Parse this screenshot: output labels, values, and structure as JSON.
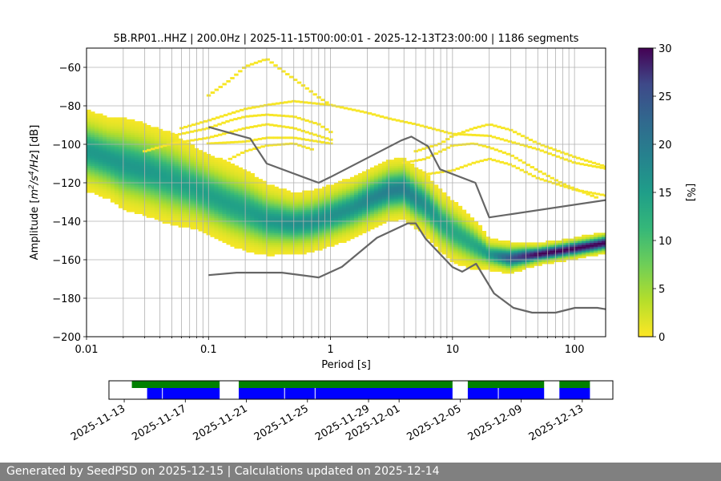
{
  "chart_data": {
    "type": "heatmap",
    "title": "5B.RP01..HHZ | 200.0Hz | 2025-11-15T00:00:01 - 2025-12-13T23:00:00 | 1186 segments",
    "xlabel": "Period [s]",
    "ylabel_parts": [
      "Amplitude [",
      "m",
      "2",
      "/s",
      "4",
      "/Hz",
      "] [dB]"
    ],
    "xscale": "log",
    "xlim": [
      0.01,
      180
    ],
    "ylim": [
      -200,
      -50
    ],
    "grid": true,
    "xticks": [
      {
        "value": 0.01,
        "label": "0.01"
      },
      {
        "value": 0.1,
        "label": "0.1"
      },
      {
        "value": 1,
        "label": "1"
      },
      {
        "value": 10,
        "label": "10"
      },
      {
        "value": 100,
        "label": "100"
      }
    ],
    "yticks": [
      {
        "value": -60,
        "label": "−60"
      },
      {
        "value": -80,
        "label": "−80"
      },
      {
        "value": -100,
        "label": "−100"
      },
      {
        "value": -120,
        "label": "−120"
      },
      {
        "value": -140,
        "label": "−140"
      },
      {
        "value": -160,
        "label": "−160"
      },
      {
        "value": -180,
        "label": "−180"
      },
      {
        "value": -200,
        "label": "−200"
      }
    ],
    "colorbar": {
      "label": "[%]",
      "colormap": "viridis_r",
      "range": [
        0,
        30
      ],
      "ticks": [
        0,
        5,
        10,
        15,
        20,
        25,
        30
      ]
    },
    "psd_mode": {
      "period": [
        0.01,
        0.015,
        0.02,
        0.03,
        0.05,
        0.08,
        0.1,
        0.15,
        0.2,
        0.3,
        0.5,
        0.7,
        1.0,
        1.5,
        2.0,
        3.0,
        4.0,
        5.0,
        6.0,
        8.0,
        10.0,
        15.0,
        20.0,
        30.0,
        50.0,
        80.0,
        100.0,
        150.0,
        180.0
      ],
      "amplitude": [
        -103,
        -107,
        -110,
        -113,
        -118,
        -123,
        -126,
        -131,
        -134,
        -139,
        -141,
        -140,
        -137,
        -133,
        -129,
        -124,
        -123,
        -128,
        -131,
        -140,
        -145,
        -152,
        -157,
        -159,
        -157,
        -155,
        -154,
        -152,
        -151
      ]
    },
    "psd_spread_db": [
      8,
      8,
      9,
      9,
      9,
      8,
      8,
      8,
      8,
      7,
      6,
      6,
      6,
      6,
      6,
      6,
      6,
      6,
      6,
      6,
      6,
      5,
      3,
      3,
      2,
      2,
      2,
      2,
      2
    ],
    "peak_mode_db": [
      14,
      14,
      14,
      14,
      13,
      13,
      13,
      13,
      13,
      14,
      15,
      15,
      15,
      15,
      16,
      17,
      17,
      16,
      15,
      13,
      12,
      12,
      14,
      22,
      30,
      30,
      30,
      30,
      30
    ],
    "scatter_traces": [
      {
        "period": [
          0.1,
          0.15,
          0.2,
          0.3,
          0.4,
          0.6,
          0.8,
          1.0
        ],
        "amplitude": [
          -75,
          -67,
          -60,
          -56,
          -62,
          -70,
          -76,
          -80
        ]
      },
      {
        "period": [
          0.06,
          0.1,
          0.2,
          0.3,
          0.5,
          1.0,
          2.0,
          3.0,
          5.0,
          10.0,
          20.0,
          50.0,
          100.0,
          180.0
        ],
        "amplitude": [
          -92,
          -88,
          -82,
          -80,
          -78,
          -80,
          -84,
          -87,
          -90,
          -95,
          -96,
          -103,
          -110,
          -113
        ]
      },
      {
        "period": [
          0.03,
          0.05,
          0.1,
          0.2,
          0.3,
          0.5,
          1.0
        ],
        "amplitude": [
          -104,
          -100,
          -97,
          -92,
          -90,
          -92,
          -98
        ]
      },
      {
        "period": [
          0.05,
          0.1,
          0.15,
          0.2,
          0.3,
          0.5,
          0.8,
          1.0
        ],
        "amplitude": [
          -96,
          -92,
          -88,
          -86,
          -85,
          -86,
          -90,
          -94
        ]
      },
      {
        "period": [
          0.1,
          0.2,
          0.3,
          0.5,
          1.0
        ],
        "amplitude": [
          -100,
          -99,
          -97,
          -97,
          -100
        ]
      },
      {
        "period": [
          0.15,
          0.2,
          0.3,
          0.5,
          0.7
        ],
        "amplitude": [
          -108,
          -104,
          -101,
          -100,
          -103
        ]
      },
      {
        "period": [
          5.0,
          8.0,
          10.0,
          15.0,
          20.0,
          30.0,
          50.0,
          100.0,
          180.0
        ],
        "amplitude": [
          -104,
          -100,
          -96,
          -92,
          -90,
          -93,
          -100,
          -107,
          -112
        ]
      },
      {
        "period": [
          4.0,
          6.0,
          8.0,
          10.0,
          15.0,
          20.0,
          30.0,
          50.0,
          80.0,
          150.0
        ],
        "amplitude": [
          -110,
          -108,
          -104,
          -101,
          -100,
          -102,
          -106,
          -114,
          -121,
          -128
        ]
      },
      {
        "period": [
          6.0,
          10.0,
          15.0,
          20.0,
          30.0,
          50.0,
          100.0,
          180.0
        ],
        "amplitude": [
          -116,
          -114,
          -110,
          -108,
          -111,
          -118,
          -124,
          -127
        ]
      }
    ],
    "noise_models": [
      {
        "period": [
          0.1,
          0.22,
          0.3,
          0.8,
          1.0,
          3.8,
          4.6,
          6.3,
          7.9,
          15.4,
          20.0,
          180.0
        ],
        "amplitude": [
          -91,
          -97,
          -110,
          -120,
          -117,
          -98,
          -96,
          -101,
          -113,
          -120,
          -138,
          -129
        ]
      },
      {
        "period": [
          0.1,
          0.17,
          0.4,
          0.8,
          1.24,
          2.4,
          4.3,
          5.0,
          6.0,
          10.0,
          12.0,
          15.6,
          21.9,
          31.6,
          45.0,
          70.0,
          101.0,
          154.0,
          180.0
        ],
        "amplitude": [
          -168,
          -166.7,
          -166.7,
          -169.2,
          -163.7,
          -148.6,
          -141.1,
          -141.1,
          -149.0,
          -163.8,
          -166.2,
          -162.1,
          -177.5,
          -185.0,
          -187.5,
          -187.5,
          -185.0,
          -185.0,
          -185.7
        ]
      }
    ]
  },
  "coverage": {
    "xlim": [
      "2025-11-12",
      "2025-12-15"
    ],
    "ticks": [
      "2025-11-13",
      "2025-11-17",
      "2025-11-21",
      "2025-11-25",
      "2025-11-29",
      "2025-12-01",
      "2025-12-05",
      "2025-12-09",
      "2025-12-13"
    ],
    "green_segments": [
      [
        "2025-11-13T12:00",
        "2025-11-19T06:00"
      ],
      [
        "2025-11-20T12:00",
        "2025-12-04T12:00"
      ],
      [
        "2025-12-05T12:00",
        "2025-12-10T12:00"
      ],
      [
        "2025-12-11T12:00",
        "2025-12-13T12:00"
      ]
    ],
    "blue_segments": [
      [
        "2025-11-14T12:00",
        "2025-11-19T06:00"
      ],
      [
        "2025-11-20T12:00",
        "2025-12-04T12:00"
      ],
      [
        "2025-12-05T12:00",
        "2025-12-10T12:00"
      ],
      [
        "2025-12-11T12:00",
        "2025-12-13T12:00"
      ]
    ],
    "blue_separators": [
      "2025-11-15T12:00",
      "2025-11-23T12:00",
      "2025-11-25T12:00",
      "2025-12-07T12:00"
    ]
  },
  "colors": {
    "noise_model": "#666666",
    "grid": "#b0b0b0",
    "coverage_green": "#008000",
    "coverage_blue": "#0000ff",
    "footer_bg": "#808080",
    "footer_text": "#ffffff"
  },
  "footer": {
    "text": "Generated by SeedPSD on 2025-12-15 | Calculations updated on 2025-12-14"
  }
}
